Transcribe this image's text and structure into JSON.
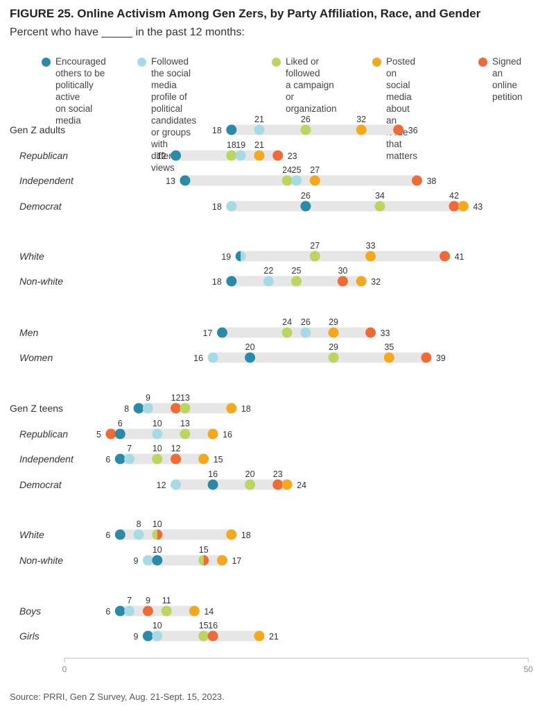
{
  "title": "FIGURE 25. Online Activism Among Gen Zers, by Party Affiliation, Race, and Gender",
  "subtitle": "Percent who have _____ in the past 12 months:",
  "source": "Source: PRRI, Gen Z Survey, Aug. 21-Sept. 15, 2023.",
  "colors": {
    "encouraged": "#2a8aa7",
    "followed": "#a6dbe6",
    "liked": "#bad660",
    "posted": "#f4a81d",
    "signed": "#ee6a36",
    "track": "#e6e6e6"
  },
  "chart_data": {
    "type": "dot",
    "xlim": [
      0,
      50
    ],
    "x_ticks": [
      "0",
      "50"
    ],
    "series": [
      {
        "key": "encouraged",
        "name": "Encouraged others to be politically active on social media",
        "name_lines": [
          "Encouraged",
          "others to be",
          "politically active",
          "on social media"
        ]
      },
      {
        "key": "followed",
        "name": "Followed the social media profile of political candidates or groups with different views",
        "name_lines": [
          "Followed the social",
          "media profile of political",
          "candidates or groups",
          "with different views"
        ]
      },
      {
        "key": "liked",
        "name": "Liked or followed a campaign or organization",
        "name_lines": [
          "Liked or followed",
          "a campaign or",
          "organization"
        ]
      },
      {
        "key": "posted",
        "name": "Posted on social media about an issue that matters",
        "name_lines": [
          "Posted on social",
          "media about an",
          "issue that matters"
        ]
      },
      {
        "key": "signed",
        "name": "Signed an online petition",
        "name_lines": [
          "Signed",
          "an online",
          "petition"
        ]
      }
    ],
    "rows": [
      {
        "label": "Gen Z adults",
        "italic": false,
        "values": {
          "encouraged": 18,
          "followed": 21,
          "liked": 26,
          "posted": 32,
          "signed": 36
        }
      },
      {
        "label": "Republican",
        "italic": true,
        "values": {
          "encouraged": 12,
          "followed": 19,
          "liked": 18,
          "posted": 21,
          "signed": 23
        }
      },
      {
        "label": "Independent",
        "italic": true,
        "values": {
          "encouraged": 13,
          "followed": 25,
          "liked": 24,
          "posted": 27,
          "signed": 38
        }
      },
      {
        "label": "Democrat",
        "italic": true,
        "values": {
          "encouraged": 26,
          "followed": 18,
          "liked": 34,
          "posted": 43,
          "signed": 42
        }
      },
      {
        "label": "White",
        "italic": true,
        "values": {
          "encouraged": 19,
          "followed": 19,
          "liked": 27,
          "posted": 33,
          "signed": 41
        }
      },
      {
        "label": "Non-white",
        "italic": true,
        "values": {
          "encouraged": 18,
          "followed": 22,
          "liked": 25,
          "posted": 32,
          "signed": 30
        }
      },
      {
        "label": "Men",
        "italic": true,
        "values": {
          "encouraged": 17,
          "followed": 26,
          "liked": 24,
          "posted": 29,
          "signed": 33
        }
      },
      {
        "label": "Women",
        "italic": true,
        "values": {
          "encouraged": 20,
          "followed": 16,
          "liked": 29,
          "posted": 35,
          "signed": 39
        }
      },
      {
        "label": "Gen Z teens",
        "italic": false,
        "values": {
          "encouraged": 8,
          "followed": 9,
          "liked": 13,
          "posted": 18,
          "signed": 12
        }
      },
      {
        "label": "Republican",
        "italic": true,
        "values": {
          "encouraged": 6,
          "followed": 10,
          "liked": 13,
          "posted": 16,
          "signed": 5
        }
      },
      {
        "label": "Independent",
        "italic": true,
        "values": {
          "encouraged": 6,
          "followed": 7,
          "liked": 10,
          "posted": 15,
          "signed": 12
        }
      },
      {
        "label": "Democrat",
        "italic": true,
        "values": {
          "encouraged": 16,
          "followed": 12,
          "liked": 20,
          "posted": 24,
          "signed": 23
        }
      },
      {
        "label": "White",
        "italic": true,
        "values": {
          "encouraged": 6,
          "followed": 8,
          "liked": 10,
          "posted": 18,
          "signed": 10
        }
      },
      {
        "label": "Non-white",
        "italic": true,
        "values": {
          "encouraged": 10,
          "followed": 9,
          "liked": 15,
          "posted": 17,
          "signed": 15
        }
      },
      {
        "label": "Boys",
        "italic": true,
        "values": {
          "encouraged": 6,
          "followed": 7,
          "liked": 11,
          "posted": 14,
          "signed": 9
        }
      },
      {
        "label": "Girls",
        "italic": true,
        "values": {
          "encouraged": 9,
          "followed": 10,
          "liked": 15,
          "posted": 21,
          "signed": 16
        }
      }
    ]
  }
}
